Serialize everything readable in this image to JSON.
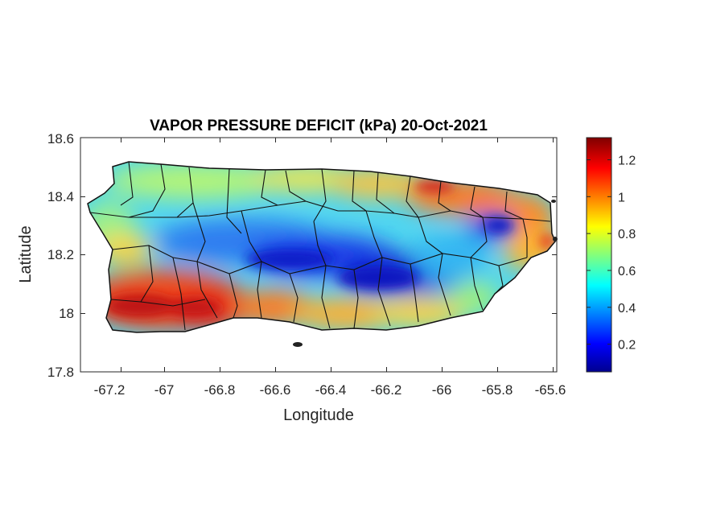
{
  "chart_data": {
    "type": "heatmap",
    "title": "VAPOR PRESSURE DEFICIT (kPa) 20-Oct-2021",
    "xlabel": "Longitude",
    "ylabel": "Latitude",
    "xlim": [
      -67.3,
      -65.58
    ],
    "ylim": [
      17.8,
      18.6
    ],
    "xticks": [
      -67.2,
      -67,
      -66.8,
      -66.6,
      -66.4,
      -66.2,
      -66,
      -65.8,
      -65.6
    ],
    "xtick_labels": [
      "-67.2",
      "-67",
      "-66.8",
      "-66.6",
      "-66.4",
      "-66.2",
      "-66",
      "-65.8",
      "-65.6"
    ],
    "yticks": [
      17.8,
      18,
      18.2,
      18.4,
      18.6
    ],
    "ytick_labels": [
      "17.8",
      "18",
      "18.2",
      "18.4",
      "18.6"
    ],
    "colormap": "jet",
    "colorbar": {
      "range": [
        0.05,
        1.32
      ],
      "ticks": [
        0.2,
        0.4,
        0.6,
        0.8,
        1,
        1.2
      ],
      "tick_labels": [
        "0.2",
        "0.4",
        "0.6",
        "0.8",
        "1",
        "1.2"
      ]
    },
    "region": "Puerto Rico",
    "grid": false,
    "high_vpd_regions": [
      {
        "lon": -67.05,
        "lat": 18.02,
        "value": 1.3
      },
      {
        "lon": -66.88,
        "lat": 18.0,
        "value": 1.2
      },
      {
        "lon": -65.95,
        "lat": 18.43,
        "value": 1.15
      },
      {
        "lon": -65.65,
        "lat": 18.33,
        "value": 1.1
      }
    ],
    "low_vpd_regions": [
      {
        "lon": -66.55,
        "lat": 18.2,
        "value": 0.15
      },
      {
        "lon": -66.2,
        "lat": 18.12,
        "value": 0.12
      },
      {
        "lon": -65.8,
        "lat": 18.3,
        "value": 0.15
      }
    ]
  }
}
